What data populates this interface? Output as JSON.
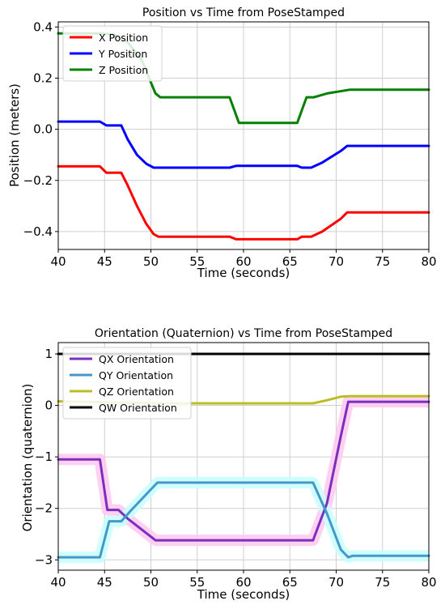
{
  "chart_data": [
    {
      "type": "line",
      "title": "Position vs Time from PoseStamped",
      "xlabel": "Time (seconds)",
      "ylabel": "Position (meters)",
      "xlim": [
        40,
        80
      ],
      "ylim": [
        -0.47,
        0.42
      ],
      "xticks": [
        40,
        45,
        50,
        55,
        60,
        65,
        70,
        75,
        80
      ],
      "yticks": [
        -0.4,
        -0.2,
        0.0,
        0.2,
        0.4
      ],
      "ytick_labels": [
        "−0.4",
        "−0.2",
        "0.0",
        "0.2",
        "0.4"
      ],
      "grid": true,
      "legend": "top-left",
      "series": [
        {
          "name": "X Position",
          "color": "#ff0000",
          "x": [
            40,
            44.5,
            45.2,
            46.8,
            47.5,
            48.5,
            49.5,
            50.3,
            50.8,
            58.5,
            59.2,
            65.8,
            66.3,
            67.3,
            68.5,
            70.5,
            71.2,
            80
          ],
          "y": [
            -0.145,
            -0.145,
            -0.17,
            -0.17,
            -0.22,
            -0.3,
            -0.37,
            -0.41,
            -0.42,
            -0.42,
            -0.43,
            -0.43,
            -0.42,
            -0.42,
            -0.4,
            -0.35,
            -0.325,
            -0.325
          ]
        },
        {
          "name": "Y Position",
          "color": "#0000ff",
          "x": [
            40,
            44.5,
            45.2,
            46.8,
            47.5,
            48.5,
            49.5,
            50.3,
            50.8,
            58.5,
            59.2,
            65.8,
            66.3,
            67.3,
            68.5,
            70.5,
            71.2,
            80
          ],
          "y": [
            0.03,
            0.03,
            0.015,
            0.015,
            -0.04,
            -0.1,
            -0.135,
            -0.15,
            -0.15,
            -0.15,
            -0.143,
            -0.143,
            -0.15,
            -0.15,
            -0.13,
            -0.085,
            -0.065,
            -0.065
          ]
        },
        {
          "name": "Z Position",
          "color": "#008000",
          "x": [
            40,
            44.5,
            46,
            47.5,
            49,
            50.5,
            51,
            58.5,
            59.5,
            65.8,
            66.8,
            67.6,
            69,
            71.5,
            80
          ],
          "y": [
            0.375,
            0.375,
            0.37,
            0.34,
            0.27,
            0.14,
            0.125,
            0.125,
            0.025,
            0.025,
            0.125,
            0.125,
            0.14,
            0.155,
            0.155
          ]
        }
      ]
    },
    {
      "type": "line",
      "title": "Orientation (Quaternion) vs Time from PoseStamped",
      "xlabel": "Time (seconds)",
      "ylabel": "Orientation (quaternion)",
      "xlim": [
        40,
        80
      ],
      "ylim": [
        -3.2,
        1.22
      ],
      "xticks": [
        40,
        45,
        50,
        55,
        60,
        65,
        70,
        75,
        80
      ],
      "yticks": [
        -3,
        -2,
        -1,
        0,
        1
      ],
      "ytick_labels": [
        "−3",
        "−2",
        "−1",
        "0",
        "1"
      ],
      "grid": true,
      "legend": "top-left",
      "series": [
        {
          "name": "QX Orientation",
          "color": "#7b2fbe",
          "shade": "#ffc8f0",
          "x": [
            40,
            44.5,
            45.3,
            46.5,
            47.5,
            50.5,
            67.5,
            69,
            70.5,
            71.3,
            80
          ],
          "y": [
            -1.05,
            -1.05,
            -2.03,
            -2.03,
            -2.2,
            -2.62,
            -2.62,
            -1.9,
            -0.6,
            0.07,
            0.07
          ]
        },
        {
          "name": "QY Orientation",
          "color": "#4698c8",
          "shade": "#c8ffff",
          "x": [
            40,
            44.5,
            45.5,
            46.8,
            47.8,
            50.7,
            67.5,
            69,
            70.5,
            71.3,
            71.8,
            80
          ],
          "y": [
            -2.95,
            -2.95,
            -2.25,
            -2.25,
            -2.05,
            -1.5,
            -1.5,
            -2.1,
            -2.8,
            -2.95,
            -2.92,
            -2.92
          ]
        },
        {
          "name": "QZ Orientation",
          "color": "#bcbd22",
          "x": [
            40,
            45,
            50,
            55,
            60,
            67.5,
            69,
            70.5,
            71.5,
            80
          ],
          "y": [
            0.08,
            0.06,
            0.04,
            0.04,
            0.04,
            0.04,
            0.1,
            0.17,
            0.18,
            0.18
          ]
        },
        {
          "name": "QW Orientation",
          "color": "#000000",
          "x": [
            40,
            80
          ],
          "y": [
            1.0,
            1.0
          ]
        }
      ]
    }
  ]
}
